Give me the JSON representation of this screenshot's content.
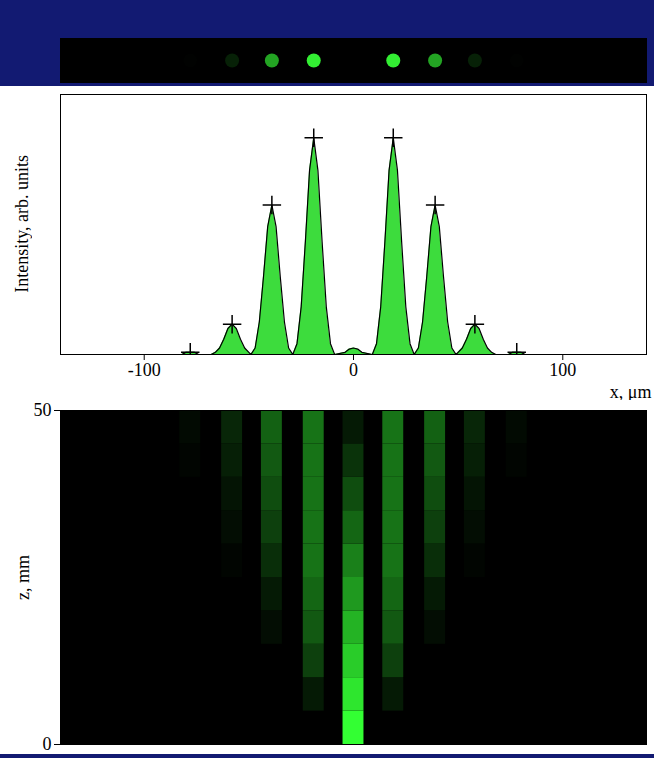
{
  "chart_data": [
    {
      "type": "spots",
      "xlim": [
        -140,
        140
      ],
      "color": "#33ee33",
      "x": [
        -78,
        -58,
        -39,
        -19,
        19,
        39,
        58,
        78
      ],
      "values": [
        0.01,
        0.14,
        0.69,
        1.0,
        1.0,
        0.69,
        0.14,
        0.01
      ],
      "tick_labels": false
    },
    {
      "type": "area",
      "xlabel": "x, μm",
      "ylabel": "Intensity, arb. units",
      "xlim": [
        -140,
        140
      ],
      "xticks": [
        -100,
        0,
        100
      ],
      "ylim": [
        0,
        1.2
      ],
      "yticks": [],
      "tick_labels": "x",
      "series": [
        {
          "type": "area",
          "color": "#3ddc3d",
          "x": [
            -140,
            -100,
            -82,
            -80,
            -78,
            -76,
            -74,
            -68,
            -66,
            -64,
            -62,
            -60,
            -58,
            -56,
            -54,
            -52,
            -50,
            -49,
            -47,
            -45,
            -43,
            -41,
            -39,
            -37,
            -35,
            -33,
            -31,
            -29,
            -27,
            -25,
            -23,
            -21,
            -19,
            -17,
            -15,
            -13,
            -11,
            -9,
            -4,
            -2,
            0,
            2,
            4,
            9,
            11,
            13,
            15,
            17,
            19,
            21,
            23,
            25,
            27,
            29,
            31,
            33,
            35,
            37,
            39,
            41,
            43,
            45,
            47,
            49,
            50,
            52,
            54,
            56,
            58,
            60,
            62,
            64,
            66,
            68,
            74,
            76,
            78,
            80,
            82,
            100,
            140
          ],
          "values": [
            0,
            0,
            0,
            0.01,
            0.01,
            0.01,
            0,
            0,
            0.01,
            0.03,
            0.07,
            0.12,
            0.14,
            0.12,
            0.07,
            0.03,
            0.01,
            0,
            0.03,
            0.15,
            0.36,
            0.59,
            0.69,
            0.59,
            0.36,
            0.15,
            0.03,
            0,
            0.05,
            0.22,
            0.52,
            0.85,
            1.0,
            0.85,
            0.52,
            0.22,
            0.05,
            0,
            0.01,
            0.025,
            0.03,
            0.025,
            0.01,
            0,
            0.05,
            0.22,
            0.52,
            0.85,
            1.0,
            0.85,
            0.52,
            0.22,
            0.05,
            0,
            0.03,
            0.15,
            0.36,
            0.59,
            0.69,
            0.59,
            0.36,
            0.15,
            0.03,
            0,
            0.01,
            0.03,
            0.07,
            0.12,
            0.14,
            0.12,
            0.07,
            0.03,
            0.01,
            0,
            0,
            0.01,
            0.01,
            0.01,
            0,
            0,
            0
          ]
        },
        {
          "type": "scatter",
          "marker": "plus",
          "color": "#000000",
          "x": [
            -78,
            -58,
            -39,
            -19,
            19,
            39,
            58,
            78
          ],
          "values": [
            0.01,
            0.14,
            0.69,
            1.0,
            1.0,
            0.69,
            0.14,
            0.01
          ]
        }
      ]
    },
    {
      "type": "heatmap",
      "ylabel": "z, mm",
      "xlim": [
        -140,
        140
      ],
      "ylim": [
        0,
        50
      ],
      "yticks": [
        0,
        50
      ],
      "tick_labels": "y",
      "color": "#33ff33",
      "intensity_range": [
        0,
        1
      ],
      "x": [
        -78,
        -58,
        -39,
        -19,
        0,
        19,
        39,
        58,
        78
      ],
      "z_edges": [
        0,
        5,
        10,
        15,
        20,
        25,
        30,
        35,
        40,
        45,
        50
      ],
      "cells": [
        [
          0,
          0,
          0,
          0,
          1.0,
          0,
          0,
          0,
          0
        ],
        [
          0,
          0,
          0,
          0.1,
          0.9,
          0.1,
          0,
          0,
          0
        ],
        [
          0,
          0,
          0,
          0.25,
          0.8,
          0.25,
          0,
          0,
          0
        ],
        [
          0,
          0,
          0.05,
          0.35,
          0.7,
          0.35,
          0.05,
          0,
          0
        ],
        [
          0,
          0,
          0.1,
          0.4,
          0.6,
          0.4,
          0.1,
          0,
          0
        ],
        [
          0,
          0.02,
          0.18,
          0.45,
          0.5,
          0.45,
          0.18,
          0.02,
          0
        ],
        [
          0,
          0.05,
          0.25,
          0.45,
          0.4,
          0.45,
          0.25,
          0.05,
          0
        ],
        [
          0,
          0.08,
          0.3,
          0.45,
          0.3,
          0.45,
          0.3,
          0.08,
          0
        ],
        [
          0.02,
          0.12,
          0.35,
          0.45,
          0.2,
          0.45,
          0.35,
          0.12,
          0.02
        ],
        [
          0.04,
          0.15,
          0.38,
          0.45,
          0.1,
          0.45,
          0.38,
          0.15,
          0.04
        ]
      ]
    }
  ]
}
